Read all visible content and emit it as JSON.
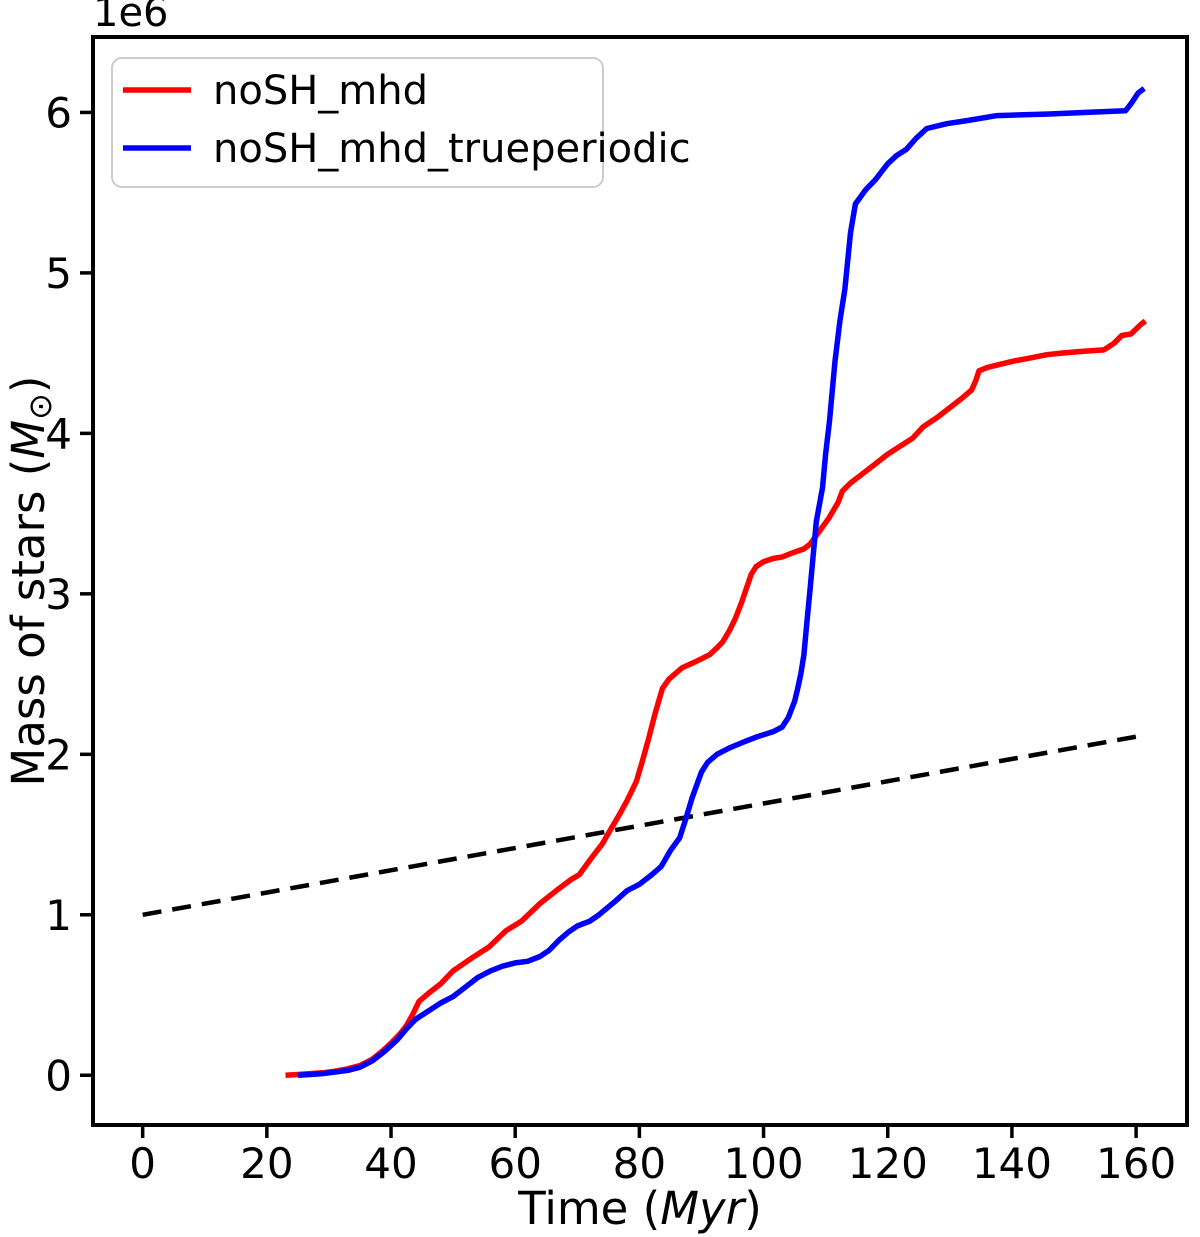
{
  "figure": {
    "background": "#ffffff",
    "axes_color": "#000000"
  },
  "chart_data": {
    "type": "line",
    "title": "",
    "xlabel": "Time (Myr)",
    "ylabel": "Mass of stars (M⊙)",
    "xlabel_parts": [
      {
        "t": "Time (",
        "italic": false
      },
      {
        "t": "Myr",
        "italic": true
      },
      {
        "t": ")",
        "italic": false
      }
    ],
    "ylabel_parts": [
      {
        "t": "Mass of stars (",
        "italic": false
      },
      {
        "t": "M",
        "italic": true
      },
      {
        "t": "⊙",
        "italic": false,
        "sub": true
      },
      {
        "t": ")",
        "italic": false
      }
    ],
    "y_offset_text": "1e6",
    "xlim": [
      -8,
      168.2
    ],
    "ylim": [
      -0.31,
      6.47
    ],
    "x_ticks": [
      0,
      20,
      40,
      60,
      80,
      100,
      120,
      140,
      160
    ],
    "y_ticks": [
      0,
      1,
      2,
      3,
      4,
      5,
      6
    ],
    "grid": false,
    "legend": {
      "position": "upper-left",
      "entries": [
        {
          "label": "noSH_mhd",
          "color": "#ff0000",
          "style": "solid"
        },
        {
          "label": "noSH_mhd_trueperiodic",
          "color": "#0000ff",
          "style": "solid"
        }
      ]
    },
    "series": [
      {
        "name": "reference-dashed-line",
        "label": "",
        "color": "#000000",
        "style": "dashed",
        "points": [
          [
            0,
            1.0
          ],
          [
            160,
            2.11
          ]
        ]
      },
      {
        "name": "noSH_mhd",
        "label": "noSH_mhd",
        "color": "#ff0000",
        "style": "solid",
        "points": [
          [
            23,
            0
          ],
          [
            25,
            0.005
          ],
          [
            27,
            0.01
          ],
          [
            29,
            0.015
          ],
          [
            31,
            0.025
          ],
          [
            33,
            0.04
          ],
          [
            35,
            0.06
          ],
          [
            37,
            0.1
          ],
          [
            38.6,
            0.15
          ],
          [
            40,
            0.2
          ],
          [
            41.5,
            0.26
          ],
          [
            42.5,
            0.31
          ],
          [
            43.5,
            0.38
          ],
          [
            44.5,
            0.46
          ],
          [
            46,
            0.51
          ],
          [
            48,
            0.57
          ],
          [
            50,
            0.65
          ],
          [
            53,
            0.73
          ],
          [
            55.8,
            0.8
          ],
          [
            58.5,
            0.9
          ],
          [
            61,
            0.96
          ],
          [
            64,
            1.07
          ],
          [
            66.6,
            1.15
          ],
          [
            69,
            1.22
          ],
          [
            70.3,
            1.25
          ],
          [
            72.4,
            1.36
          ],
          [
            74,
            1.44
          ],
          [
            75.2,
            1.52
          ],
          [
            77,
            1.64
          ],
          [
            78,
            1.71
          ],
          [
            79.5,
            1.83
          ],
          [
            80.5,
            1.96
          ],
          [
            81.5,
            2.1
          ],
          [
            82.5,
            2.25
          ],
          [
            83.7,
            2.41
          ],
          [
            84.8,
            2.47
          ],
          [
            86.9,
            2.54
          ],
          [
            89.2,
            2.58
          ],
          [
            91.3,
            2.62
          ],
          [
            92.4,
            2.66
          ],
          [
            93.4,
            2.7
          ],
          [
            94.5,
            2.77
          ],
          [
            95.5,
            2.85
          ],
          [
            96.5,
            2.95
          ],
          [
            97.2,
            3.03
          ],
          [
            98,
            3.12
          ],
          [
            98.8,
            3.17
          ],
          [
            100,
            3.2
          ],
          [
            101.5,
            3.22
          ],
          [
            103,
            3.23
          ],
          [
            105,
            3.26
          ],
          [
            106.5,
            3.28
          ],
          [
            107.5,
            3.31
          ],
          [
            109,
            3.39
          ],
          [
            110.5,
            3.47
          ],
          [
            112,
            3.57
          ],
          [
            112.7,
            3.64
          ],
          [
            114,
            3.69
          ],
          [
            116,
            3.75
          ],
          [
            118,
            3.81
          ],
          [
            120,
            3.87
          ],
          [
            122,
            3.92
          ],
          [
            124,
            3.97
          ],
          [
            125.7,
            4.04
          ],
          [
            128,
            4.1
          ],
          [
            130,
            4.16
          ],
          [
            132,
            4.22
          ],
          [
            133.5,
            4.27
          ],
          [
            134.2,
            4.33
          ],
          [
            134.7,
            4.39
          ],
          [
            136,
            4.41
          ],
          [
            138,
            4.43
          ],
          [
            140.2,
            4.45
          ],
          [
            143,
            4.47
          ],
          [
            145.6,
            4.49
          ],
          [
            148,
            4.5
          ],
          [
            151,
            4.51
          ],
          [
            154.8,
            4.52
          ],
          [
            156.4,
            4.56
          ],
          [
            157.7,
            4.61
          ],
          [
            159.2,
            4.62
          ],
          [
            160.8,
            4.68
          ],
          [
            161.5,
            4.7
          ]
        ]
      },
      {
        "name": "noSH_mhd_trueperiodic",
        "label": "noSH_mhd_trueperiodic",
        "color": "#0000ff",
        "style": "solid",
        "points": [
          [
            25,
            0
          ],
          [
            27,
            0.005
          ],
          [
            29,
            0.01
          ],
          [
            31,
            0.02
          ],
          [
            33,
            0.03
          ],
          [
            35,
            0.05
          ],
          [
            37,
            0.09
          ],
          [
            39,
            0.15
          ],
          [
            41,
            0.22
          ],
          [
            42.5,
            0.29
          ],
          [
            44,
            0.35
          ],
          [
            46,
            0.4
          ],
          [
            48,
            0.45
          ],
          [
            50,
            0.49
          ],
          [
            52,
            0.55
          ],
          [
            54,
            0.61
          ],
          [
            56,
            0.65
          ],
          [
            58,
            0.68
          ],
          [
            60,
            0.7
          ],
          [
            62,
            0.71
          ],
          [
            64,
            0.74
          ],
          [
            65.5,
            0.78
          ],
          [
            67,
            0.84
          ],
          [
            68.5,
            0.89
          ],
          [
            70,
            0.93
          ],
          [
            72,
            0.96
          ],
          [
            73.5,
            1.0
          ],
          [
            76,
            1.08
          ],
          [
            78,
            1.15
          ],
          [
            80,
            1.19
          ],
          [
            82,
            1.25
          ],
          [
            83.5,
            1.3
          ],
          [
            85,
            1.4
          ],
          [
            86.5,
            1.48
          ],
          [
            87.5,
            1.6
          ],
          [
            88.5,
            1.73
          ],
          [
            90,
            1.89
          ],
          [
            91,
            1.95
          ],
          [
            92.5,
            2.0
          ],
          [
            94.5,
            2.04
          ],
          [
            97,
            2.08
          ],
          [
            99,
            2.11
          ],
          [
            101.5,
            2.14
          ],
          [
            103,
            2.17
          ],
          [
            104,
            2.23
          ],
          [
            105,
            2.33
          ],
          [
            105.5,
            2.41
          ],
          [
            106,
            2.5
          ],
          [
            106.5,
            2.62
          ],
          [
            107,
            2.83
          ],
          [
            107.5,
            3.03
          ],
          [
            108,
            3.24
          ],
          [
            108.5,
            3.45
          ],
          [
            109.5,
            3.66
          ],
          [
            110,
            3.87
          ],
          [
            110.6,
            4.07
          ],
          [
            111.5,
            4.45
          ],
          [
            112.3,
            4.7
          ],
          [
            113.1,
            4.9
          ],
          [
            114,
            5.25
          ],
          [
            114.8,
            5.43
          ],
          [
            116.5,
            5.52
          ],
          [
            118,
            5.58
          ],
          [
            120,
            5.68
          ],
          [
            121.4,
            5.73
          ],
          [
            123,
            5.77
          ],
          [
            124.6,
            5.84
          ],
          [
            126.3,
            5.9
          ],
          [
            129.5,
            5.93
          ],
          [
            133,
            5.95
          ],
          [
            137.6,
            5.98
          ],
          [
            146,
            5.99
          ],
          [
            152,
            6.0
          ],
          [
            158.3,
            6.01
          ],
          [
            159.3,
            6.06
          ],
          [
            160.3,
            6.12
          ],
          [
            161.3,
            6.15
          ]
        ]
      }
    ]
  }
}
